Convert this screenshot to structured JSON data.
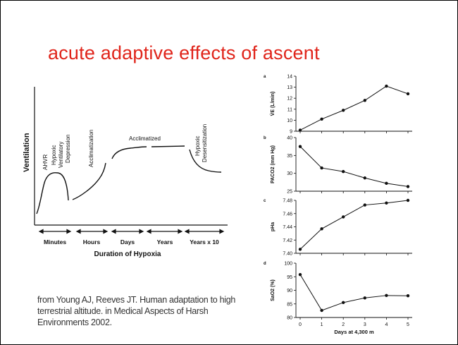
{
  "slide": {
    "title": "acute adaptive effects of ascent",
    "citation": "from Young AJ, Reeves JT. Human adaptation to high terrestrial altitude. in Medical Aspects of Harsh Environments 2002.",
    "title_color": "#e0251b"
  },
  "left_chart": {
    "type": "line",
    "ylabel": "Ventilation",
    "xlabel": "Duration of Hypoxia",
    "x_categories": [
      "Minutes",
      "Hours",
      "Days",
      "Years",
      "Years x 10"
    ],
    "annotations": [
      "AHVR",
      "Hypoxic Ventilatory Depression",
      "Acclimatization",
      "Acclimatized",
      "Hypoxic Desensitization"
    ]
  },
  "chart_data": [
    {
      "panel": "a",
      "type": "line",
      "ylabel": "V̇E (L/min)",
      "x": [
        0,
        1,
        2,
        3,
        4,
        5
      ],
      "values": [
        9.1,
        10.1,
        10.9,
        11.8,
        13.1,
        12.4
      ],
      "ylim": [
        9,
        14
      ],
      "yticks": [
        "9",
        "10",
        "11",
        "12",
        "13",
        "14"
      ]
    },
    {
      "panel": "b",
      "type": "line",
      "ylabel": "PACO2 (mm Hg)",
      "x": [
        0,
        1,
        2,
        3,
        4,
        5
      ],
      "values": [
        37.5,
        31.5,
        30.5,
        28.7,
        27.2,
        26.3
      ],
      "ylim": [
        25,
        40
      ],
      "yticks": [
        "25",
        "30",
        "35",
        "40"
      ]
    },
    {
      "panel": "c",
      "type": "line",
      "ylabel": "pHa",
      "x": [
        0,
        1,
        2,
        3,
        4,
        5
      ],
      "values": [
        7.406,
        7.437,
        7.455,
        7.473,
        7.476,
        7.48
      ],
      "ylim": [
        7.4,
        7.48
      ],
      "yticks": [
        "7.40",
        "7.42",
        "7.44",
        "7.46",
        "7.48"
      ]
    },
    {
      "panel": "d",
      "type": "line",
      "ylabel": "SaO2 (%)",
      "x": [
        0,
        1,
        2,
        3,
        4,
        5
      ],
      "values": [
        95.8,
        82.6,
        85.5,
        87.2,
        88.1,
        88.0
      ],
      "ylim": [
        80,
        100
      ],
      "yticks": [
        "80",
        "85",
        "90",
        "95",
        "100"
      ],
      "xlabel": "Days at 4,300 m",
      "xticks": [
        "0",
        "1",
        "2",
        "3",
        "4",
        "5"
      ]
    }
  ]
}
